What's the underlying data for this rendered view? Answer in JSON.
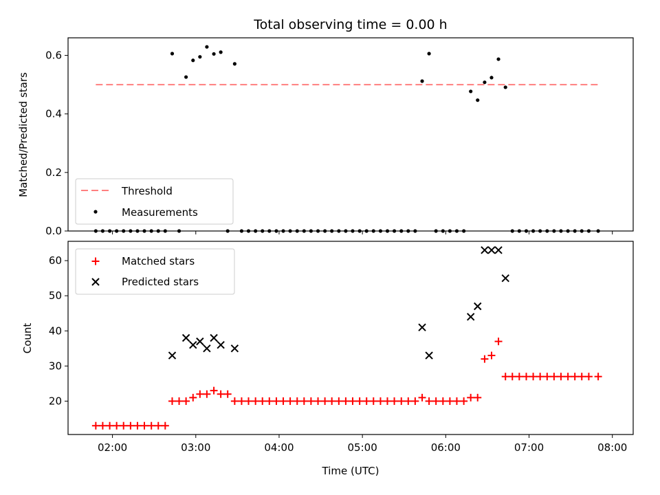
{
  "chart_data": [
    {
      "type": "scatter",
      "title": "Total observing time = 0.00 h",
      "ylabel": "Matched/Predicted stars",
      "xlim_hours": [
        1.467,
        8.25
      ],
      "ylim": [
        0,
        0.66
      ],
      "yticks": [
        0.0,
        0.2,
        0.4,
        0.6
      ],
      "ytick_labels": [
        "0.0",
        "0.2",
        "0.4",
        "0.6"
      ],
      "grid": false,
      "legend_position": "lower-left",
      "threshold": {
        "name": "Threshold",
        "value": 0.5,
        "x_range_hours": [
          1.8,
          7.83
        ],
        "color": "#ff7f7f",
        "style": "dashed"
      },
      "series": [
        {
          "name": "Measurements",
          "color": "#000000",
          "marker": "dot",
          "x_hours": [
            1.8,
            1.883,
            1.967,
            2.05,
            2.133,
            2.217,
            2.3,
            2.383,
            2.467,
            2.55,
            2.633,
            2.717,
            2.8,
            2.883,
            2.967,
            3.05,
            3.133,
            3.217,
            3.3,
            3.383,
            3.467,
            3.55,
            3.633,
            3.717,
            3.8,
            3.883,
            3.967,
            4.05,
            4.133,
            4.217,
            4.3,
            4.383,
            4.467,
            4.55,
            4.633,
            4.717,
            4.8,
            4.883,
            4.967,
            5.05,
            5.133,
            5.217,
            5.3,
            5.383,
            5.467,
            5.55,
            5.633,
            5.717,
            5.8,
            5.883,
            5.967,
            6.05,
            6.133,
            6.217,
            6.3,
            6.383,
            6.467,
            6.55,
            6.633,
            6.717,
            6.8,
            6.883,
            6.967,
            7.05,
            7.133,
            7.217,
            7.3,
            7.383,
            7.467,
            7.55,
            7.633,
            7.717,
            7.83
          ],
          "y": [
            0,
            0,
            0,
            0,
            0,
            0,
            0,
            0,
            0,
            0,
            0,
            0.606,
            0,
            0.526,
            0.583,
            0.595,
            0.629,
            0.605,
            0.611,
            0,
            0.571,
            0,
            0,
            0,
            0,
            0,
            0,
            0,
            0,
            0,
            0,
            0,
            0,
            0,
            0,
            0,
            0,
            0,
            0,
            0,
            0,
            0,
            0,
            0,
            0,
            0,
            0,
            0.512,
            0.606,
            0,
            0,
            0,
            0,
            0,
            0.477,
            0.447,
            0.508,
            0.524,
            0.587,
            0.491,
            0,
            0,
            0,
            0,
            0,
            0,
            0,
            0,
            0,
            0,
            0,
            0,
            0
          ]
        }
      ]
    },
    {
      "type": "scatter",
      "title": "",
      "xlabel": "Time (UTC)",
      "ylabel": "Count",
      "xlim_hours": [
        1.467,
        8.25
      ],
      "ylim": [
        10.5,
        65.5
      ],
      "xticks_hours": [
        2,
        3,
        4,
        5,
        6,
        7,
        8
      ],
      "xtick_labels": [
        "02:00",
        "03:00",
        "04:00",
        "05:00",
        "06:00",
        "07:00",
        "08:00"
      ],
      "yticks": [
        20,
        30,
        40,
        50,
        60
      ],
      "ytick_labels": [
        "20",
        "30",
        "40",
        "50",
        "60"
      ],
      "grid": false,
      "legend_position": "top-left",
      "series": [
        {
          "name": "Matched stars",
          "color": "#ff0000",
          "marker": "plus",
          "x_hours": [
            1.8,
            1.883,
            1.967,
            2.05,
            2.133,
            2.217,
            2.3,
            2.383,
            2.467,
            2.55,
            2.633,
            2.717,
            2.8,
            2.883,
            2.967,
            3.05,
            3.133,
            3.217,
            3.3,
            3.383,
            3.467,
            3.55,
            3.633,
            3.717,
            3.8,
            3.883,
            3.967,
            4.05,
            4.133,
            4.217,
            4.3,
            4.383,
            4.467,
            4.55,
            4.633,
            4.717,
            4.8,
            4.883,
            4.967,
            5.05,
            5.133,
            5.217,
            5.3,
            5.383,
            5.467,
            5.55,
            5.633,
            5.717,
            5.8,
            5.883,
            5.967,
            6.05,
            6.133,
            6.217,
            6.3,
            6.383,
            6.467,
            6.55,
            6.633,
            6.717,
            6.8,
            6.883,
            6.967,
            7.05,
            7.133,
            7.217,
            7.3,
            7.383,
            7.467,
            7.55,
            7.633,
            7.717,
            7.83
          ],
          "y": [
            13,
            13,
            13,
            13,
            13,
            13,
            13,
            13,
            13,
            13,
            13,
            20,
            20,
            20,
            21,
            22,
            22,
            23,
            22,
            22,
            20,
            20,
            20,
            20,
            20,
            20,
            20,
            20,
            20,
            20,
            20,
            20,
            20,
            20,
            20,
            20,
            20,
            20,
            20,
            20,
            20,
            20,
            20,
            20,
            20,
            20,
            20,
            21,
            20,
            20,
            20,
            20,
            20,
            20,
            21,
            21,
            32,
            33,
            37,
            27,
            27,
            27,
            27,
            27,
            27,
            27,
            27,
            27,
            27,
            27,
            27,
            27,
            27
          ]
        },
        {
          "name": "Predicted stars",
          "color": "#000000",
          "marker": "x",
          "x_hours": [
            2.717,
            2.883,
            2.967,
            3.05,
            3.133,
            3.217,
            3.3,
            3.467,
            5.717,
            5.8,
            6.3,
            6.383,
            6.467,
            6.55,
            6.633,
            6.717
          ],
          "y": [
            33,
            38,
            36,
            37,
            35,
            38,
            36,
            35,
            41,
            33,
            44,
            47,
            63,
            63,
            63,
            55
          ]
        }
      ]
    }
  ]
}
